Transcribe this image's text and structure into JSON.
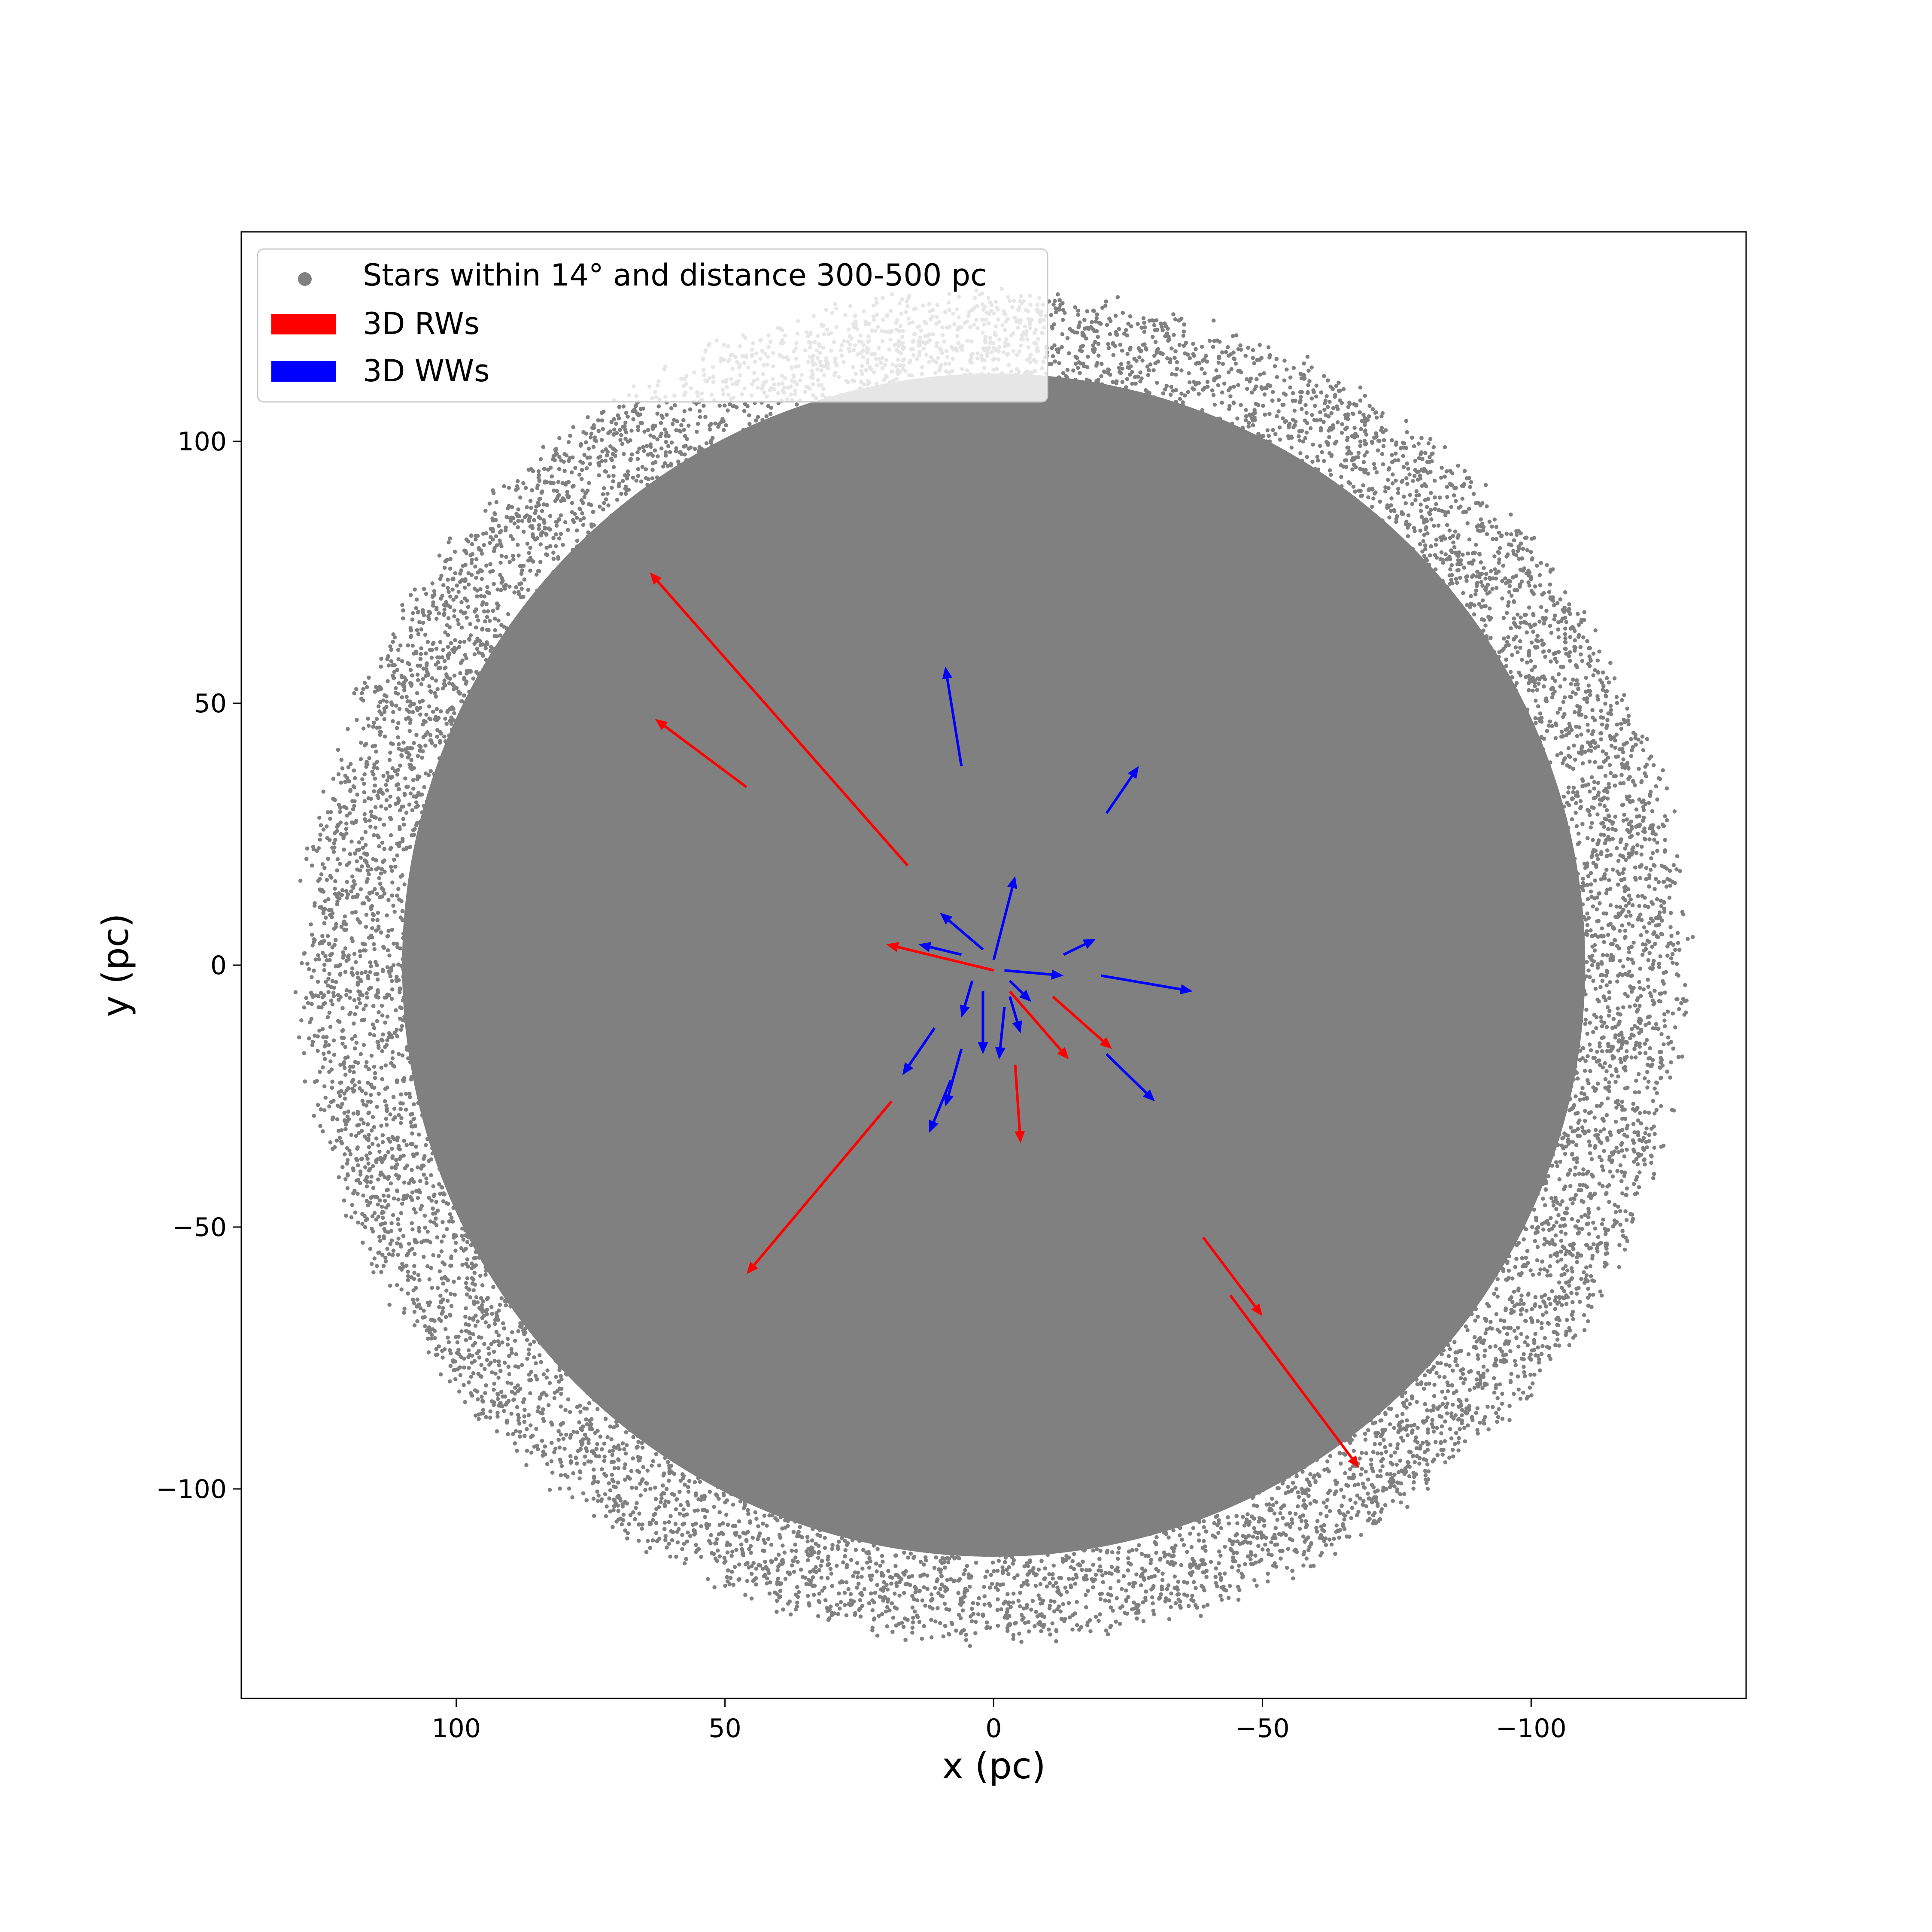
{
  "chart_data": {
    "type": "scatter",
    "xlabel": "x (pc)",
    "ylabel": "y (pc)",
    "xlim": [
      140,
      -140
    ],
    "ylim": [
      -140,
      140
    ],
    "x_inverted": true,
    "grid": false,
    "legend_position": "upper-left",
    "xticks": [
      {
        "value": 100,
        "label": "100"
      },
      {
        "value": 50,
        "label": "50"
      },
      {
        "value": 0,
        "label": "0"
      },
      {
        "value": -50,
        "label": "−50"
      },
      {
        "value": -100,
        "label": "−100"
      }
    ],
    "yticks": [
      {
        "value": 100,
        "label": "100"
      },
      {
        "value": 50,
        "label": "50"
      },
      {
        "value": 0,
        "label": "0"
      },
      {
        "value": -50,
        "label": "−50"
      },
      {
        "value": -100,
        "label": "−100"
      }
    ],
    "series": [
      {
        "name": "Stars within 14° and distance 300-500 pc",
        "kind": "scatter",
        "color": "#808080",
        "disk_radius_pc": 128,
        "point_count_drawn": 26000
      },
      {
        "name": "3D RWs",
        "kind": "arrows",
        "color": "#ff0000",
        "arrows": [
          {
            "x0": 16,
            "y0": 19,
            "x1": 64,
            "y1": 75
          },
          {
            "x0": 46,
            "y0": 34,
            "x1": 63,
            "y1": 47
          },
          {
            "x0": 0,
            "y0": -1,
            "x1": 20,
            "y1": 4
          },
          {
            "x0": 19,
            "y0": -26,
            "x1": 46,
            "y1": -59
          },
          {
            "x0": -4,
            "y0": -19,
            "x1": -5,
            "y1": -34
          },
          {
            "x0": -3,
            "y0": -5,
            "x1": -14,
            "y1": -18
          },
          {
            "x0": -11,
            "y0": -6,
            "x1": -22,
            "y1": -16
          },
          {
            "x0": -39,
            "y0": -52,
            "x1": -50,
            "y1": -67
          },
          {
            "x0": -44,
            "y0": -63,
            "x1": -68,
            "y1": -96
          }
        ]
      },
      {
        "name": "3D WWs",
        "kind": "arrows",
        "color": "#0000ff",
        "arrows": [
          {
            "x0": 6,
            "y0": 38,
            "x1": 9,
            "y1": 57
          },
          {
            "x0": -21,
            "y0": 29,
            "x1": -27,
            "y1": 38
          },
          {
            "x0": 0,
            "y0": 1,
            "x1": -4,
            "y1": 17
          },
          {
            "x0": 2,
            "y0": 3,
            "x1": 10,
            "y1": 10
          },
          {
            "x0": 6,
            "y0": 2,
            "x1": 14,
            "y1": 4
          },
          {
            "x0": -13,
            "y0": 2,
            "x1": -19,
            "y1": 5
          },
          {
            "x0": -2,
            "y0": -1,
            "x1": -13,
            "y1": -2
          },
          {
            "x0": -20,
            "y0": -2,
            "x1": -37,
            "y1": -5
          },
          {
            "x0": -21,
            "y0": -17,
            "x1": -30,
            "y1": -26
          },
          {
            "x0": -3,
            "y0": -3,
            "x1": -7,
            "y1": -7
          },
          {
            "x0": -3,
            "y0": -6,
            "x1": -5,
            "y1": -13
          },
          {
            "x0": 2,
            "y0": -5,
            "x1": 2,
            "y1": -17
          },
          {
            "x0": -2,
            "y0": -8,
            "x1": -1,
            "y1": -18
          },
          {
            "x0": 4,
            "y0": -3,
            "x1": 6,
            "y1": -10
          },
          {
            "x0": 11,
            "y0": -12,
            "x1": 17,
            "y1": -21
          },
          {
            "x0": 6,
            "y0": -16,
            "x1": 9,
            "y1": -27
          },
          {
            "x0": 8,
            "y0": -22,
            "x1": 12,
            "y1": -32
          }
        ]
      }
    ]
  }
}
